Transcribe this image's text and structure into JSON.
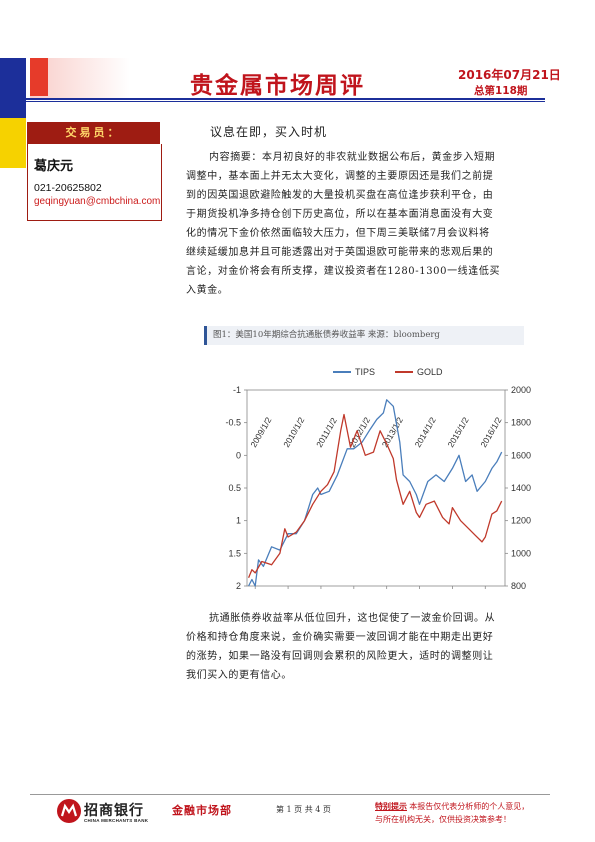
{
  "header": {
    "title": "贵金属市场周评",
    "date": "2016年07月21日",
    "issue": "总第118期"
  },
  "sidebar": {
    "heading": "交易员：",
    "analyst_name": "葛庆元",
    "phone": "021-20625802",
    "email": "geqingyuan@cmbchina.com"
  },
  "article": {
    "headline": "议息在即，买入时机",
    "summary_lines": [
      "内容摘要：本月初良好的非农就业数据公布后，黄金步入短期",
      "调整中，基本面上并无太大变化，调整的主要原因还是我们之前提",
      "到的因英国退欧避险触发的大量投机买盘在高位逢步获利平仓，由",
      "于期货投机净多持仓创下历史高位，所以在基本面消息面没有大变",
      "化的情况下金价依然面临较大压力，但下周三美联储7月会议料将",
      "继续延缓加息并且可能透露出对于英国退欧可能带来的悲观后果的",
      "言论，对金价将会有所支撑，建议投资者在1280-1300一线逢低买",
      "入黄金。"
    ],
    "closing_lines": [
      "抗通胀债券收益率从低位回升，这也促使了一波金价回调。从",
      "价格和持仓角度来说，金价确实需要一波回调才能在中期走出更好",
      "的涨势，如果一路没有回调则会累积的风险更大，适时的调整则让",
      "我们买入的更有信心。"
    ]
  },
  "figure": {
    "caption": "图1：美国10年期综合抗通胀债券收益率    来源：bloomberg"
  },
  "chart_data": {
    "type": "line",
    "title": "",
    "xlabel": "",
    "ylabel_left": "",
    "ylabel_right": "",
    "x_tick_labels": [
      "2009/1/2",
      "2010/1/2",
      "2011/1/2",
      "2012/1/2",
      "2013/1/2",
      "2014/1/2",
      "2015/1/2",
      "2016/1/2"
    ],
    "x_range": [
      2008.75,
      2016.6
    ],
    "left_axis": {
      "min": -1,
      "max": 2,
      "inverted": true,
      "ticks": [
        "-1",
        "-0.5",
        "0",
        "0.5",
        "1",
        "1.5",
        "2"
      ]
    },
    "right_axis": {
      "min": 800,
      "max": 2000,
      "inverted": false,
      "ticks": [
        "800",
        "1000",
        "1200",
        "1400",
        "1600",
        "1800",
        "2000"
      ]
    },
    "legend_position": "top-center",
    "grid": false,
    "series": [
      {
        "name": "TIPS",
        "axis": "left",
        "color": "#4a7ebb",
        "x": [
          2008.8,
          2008.9,
          2009.0,
          2009.1,
          2009.25,
          2009.5,
          2009.75,
          2010.0,
          2010.25,
          2010.5,
          2010.75,
          2010.9,
          2011.0,
          2011.25,
          2011.5,
          2011.65,
          2011.8,
          2012.0,
          2012.25,
          2012.5,
          2012.7,
          2012.9,
          2013.0,
          2013.2,
          2013.4,
          2013.5,
          2013.7,
          2013.9,
          2014.0,
          2014.25,
          2014.5,
          2014.75,
          2015.0,
          2015.2,
          2015.4,
          2015.6,
          2015.75,
          2016.0,
          2016.2,
          2016.35,
          2016.5
        ],
        "y": [
          2.0,
          1.9,
          2.0,
          1.6,
          1.7,
          1.4,
          1.45,
          1.2,
          1.2,
          1.0,
          0.6,
          0.5,
          0.6,
          0.55,
          0.3,
          0.1,
          -0.1,
          -0.1,
          -0.2,
          -0.4,
          -0.55,
          -0.65,
          -0.85,
          -0.75,
          -0.2,
          0.3,
          0.4,
          0.6,
          0.75,
          0.4,
          0.3,
          0.4,
          0.2,
          0.0,
          0.4,
          0.3,
          0.55,
          0.4,
          0.2,
          0.1,
          -0.05
        ]
      },
      {
        "name": "GOLD",
        "axis": "right",
        "color": "#c0392b",
        "x": [
          2008.8,
          2008.9,
          2009.0,
          2009.2,
          2009.5,
          2009.75,
          2009.9,
          2010.0,
          2010.25,
          2010.5,
          2010.75,
          2011.0,
          2011.2,
          2011.4,
          2011.6,
          2011.7,
          2011.9,
          2012.1,
          2012.35,
          2012.6,
          2012.8,
          2013.0,
          2013.2,
          2013.3,
          2013.5,
          2013.7,
          2013.9,
          2014.0,
          2014.2,
          2014.45,
          2014.7,
          2014.9,
          2015.0,
          2015.25,
          2015.5,
          2015.7,
          2015.9,
          2016.0,
          2016.2,
          2016.35,
          2016.5
        ],
        "y": [
          850,
          900,
          880,
          950,
          930,
          1000,
          1150,
          1100,
          1130,
          1200,
          1300,
          1380,
          1420,
          1500,
          1750,
          1850,
          1650,
          1750,
          1600,
          1620,
          1750,
          1670,
          1580,
          1450,
          1300,
          1380,
          1250,
          1220,
          1300,
          1320,
          1220,
          1180,
          1280,
          1200,
          1150,
          1110,
          1070,
          1100,
          1240,
          1260,
          1320
        ]
      }
    ]
  }
}
